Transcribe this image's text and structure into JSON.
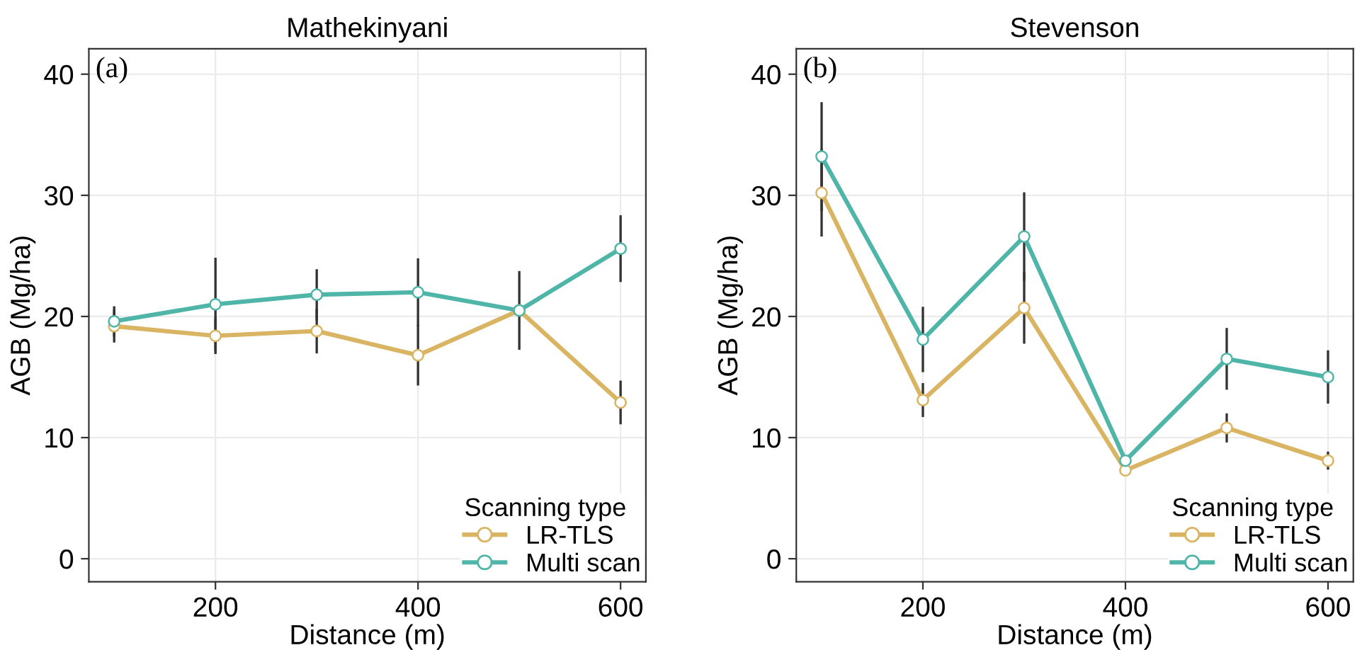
{
  "chart_data": [
    {
      "type": "line",
      "title": "Mathekinyani",
      "xlabel": "Distance (m)",
      "ylabel": "AGB (Mg/ha)",
      "legend_title": "Scanning type",
      "annotations": [
        "(a)"
      ],
      "x": [
        100,
        200,
        300,
        400,
        500,
        600
      ],
      "xlim": [
        75,
        625
      ],
      "xticks": [
        200,
        400,
        600
      ],
      "ylim": [
        -1.9,
        42.1
      ],
      "yticks": [
        0,
        10,
        20,
        30,
        40
      ],
      "grid": true,
      "legend": "bottom right",
      "marker": "circle",
      "line_style": "solid",
      "series": [
        {
          "name": "LR-TLS",
          "color": "#d9b462",
          "values": [
            19.2,
            18.4,
            18.8,
            16.8,
            20.5,
            12.9
          ],
          "errors": [
            1.35,
            1.5,
            1.85,
            2.5,
            null,
            1.8
          ]
        },
        {
          "name": "Multi scan",
          "color": "#4fb5a8",
          "values": [
            19.6,
            21.0,
            21.8,
            22.0,
            20.5,
            25.6
          ],
          "errors": [
            1.25,
            3.85,
            2.1,
            2.8,
            3.25,
            2.75
          ]
        }
      ]
    },
    {
      "type": "line",
      "title": "Stevenson",
      "xlabel": "Distance (m)",
      "ylabel": "AGB (Mg/ha)",
      "legend_title": "Scanning type",
      "annotations": [
        "(b)"
      ],
      "x": [
        100,
        200,
        300,
        400,
        500,
        600
      ],
      "xlim": [
        75,
        625
      ],
      "xticks": [
        200,
        400,
        600
      ],
      "ylim": [
        -1.9,
        42.1
      ],
      "yticks": [
        0,
        10,
        20,
        30,
        40
      ],
      "grid": true,
      "legend": "bottom right",
      "marker": "circle",
      "line_style": "solid",
      "series": [
        {
          "name": "LR-TLS",
          "color": "#d9b462",
          "values": [
            30.2,
            13.1,
            20.7,
            7.3,
            10.8,
            8.1
          ],
          "errors": [
            3.6,
            1.4,
            2.95,
            null,
            1.2,
            0.75
          ]
        },
        {
          "name": "Multi scan",
          "color": "#4fb5a8",
          "values": [
            33.2,
            18.1,
            26.6,
            8.1,
            16.5,
            15.0
          ],
          "errors": [
            4.5,
            2.7,
            3.65,
            null,
            2.55,
            2.2
          ]
        }
      ]
    }
  ]
}
